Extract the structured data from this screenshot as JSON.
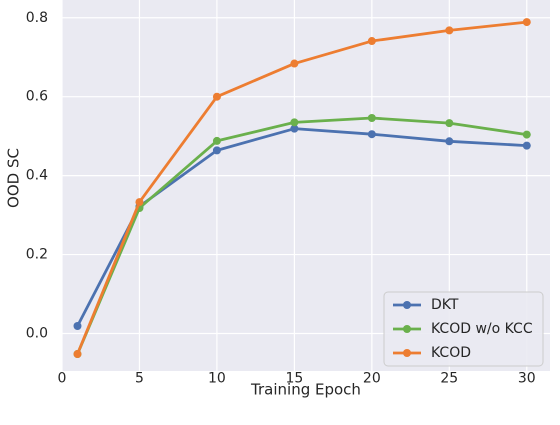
{
  "chart_data": {
    "type": "line",
    "title": "",
    "xlabel": "Training Epoch",
    "ylabel": "OOD SC",
    "x": [
      1,
      5,
      10,
      15,
      20,
      25,
      30
    ],
    "xlim": [
      0,
      31.5
    ],
    "ylim": [
      -0.095,
      0.845
    ],
    "xticks": [
      0,
      5,
      10,
      15,
      20,
      25,
      30
    ],
    "yticks": [
      0.0,
      0.2,
      0.4,
      0.6,
      0.8
    ],
    "ytick_labels": [
      "0.0",
      "0.2",
      "0.4",
      "0.6",
      "0.8"
    ],
    "grid": true,
    "legend_position": "bottom-right",
    "series": [
      {
        "name": "DKT",
        "color": "#4c72b0",
        "values": [
          0.019,
          0.322,
          0.464,
          0.519,
          0.505,
          0.487,
          0.476
        ]
      },
      {
        "name": "KCOD w/o KCC",
        "color": "#6ab04c",
        "values": [
          -0.052,
          0.318,
          0.488,
          0.535,
          0.546,
          0.533,
          0.504
        ]
      },
      {
        "name": "KCOD",
        "color": "#ed7d31",
        "values": [
          -0.052,
          0.333,
          0.6,
          0.684,
          0.741,
          0.768,
          0.789
        ]
      }
    ]
  }
}
